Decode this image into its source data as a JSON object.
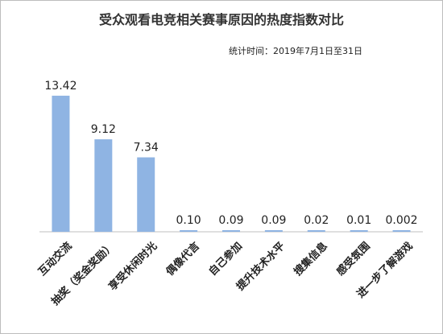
{
  "chart_data": {
    "type": "bar",
    "title": "受众观看电竞相关赛事原因的热度指数对比",
    "note": "统计时间：2019年7月1日至31日",
    "categories": [
      "互动交流",
      "抽奖（奖金奖励）",
      "享受休闲时光",
      "偶像代言",
      "自己参加",
      "提升技术水平",
      "搜集信息",
      "感受氛围",
      "进一步了解游戏"
    ],
    "values": [
      13.42,
      9.12,
      7.34,
      0.1,
      0.09,
      0.09,
      0.02,
      0.01,
      0.002
    ],
    "value_labels": [
      "13.42",
      "9.12",
      "7.34",
      "0.10",
      "0.09",
      "0.09",
      "0.02",
      "0.01",
      "0.002"
    ],
    "ylim": [
      0,
      15
    ],
    "bar_color": "#8fb4e3",
    "axis_color": "#bfbfbf",
    "grid": false,
    "legend": "none"
  }
}
